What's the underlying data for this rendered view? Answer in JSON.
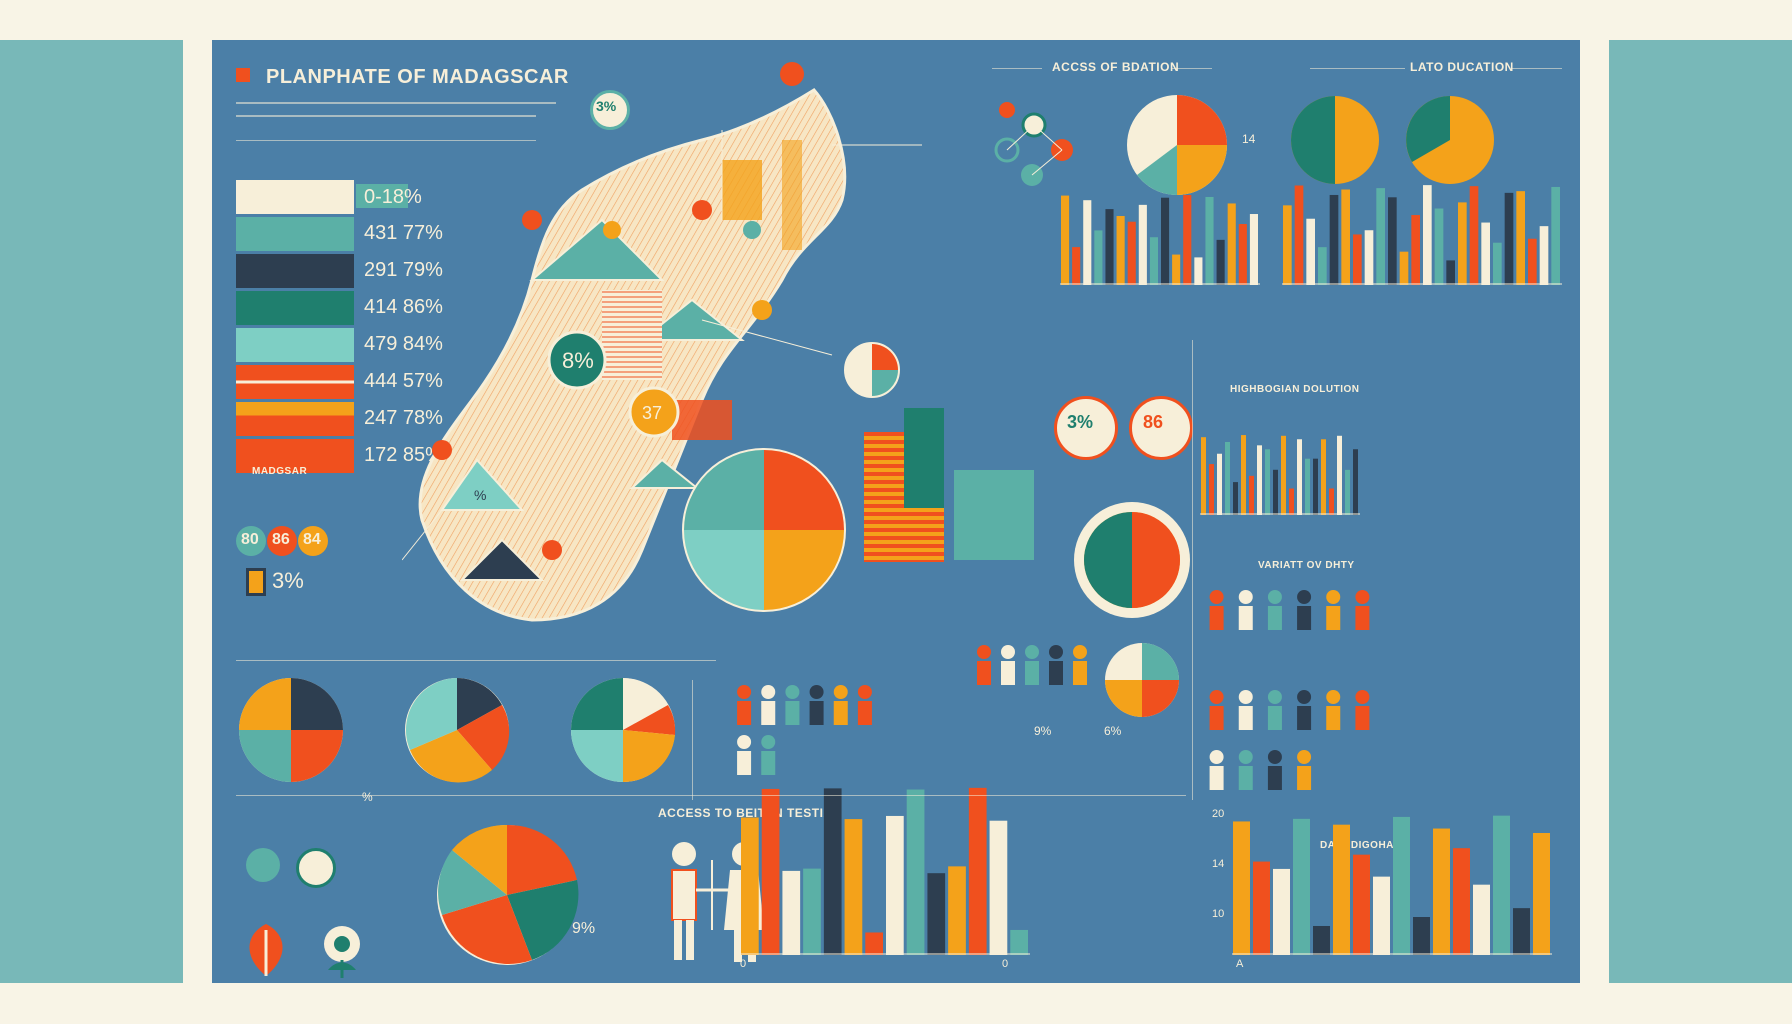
{
  "title": "PLANPHATE OF MADAGSCAR",
  "colors": {
    "panel": "#4b7fa7",
    "cream": "#f7efd9",
    "teal": "#5bb0a6",
    "dark_teal": "#1f7f6e",
    "orange": "#f0501e",
    "yellow": "#f4a21a",
    "navy": "#2d3e50",
    "side": "#78b8b8"
  },
  "icons": [
    "person-icon",
    "leaf-icon",
    "flower-icon",
    "map-icon"
  ],
  "legend": {
    "items": [
      {
        "label": "0-18%",
        "color": "#f7efd9"
      },
      {
        "label": "431 77%",
        "color": "#5bb0a6"
      },
      {
        "label": "291 79%",
        "color": "#2d3e50"
      },
      {
        "label": "414 86%",
        "color": "#1f7f6e"
      },
      {
        "label": "479 84%",
        "color": "#7ecfc4"
      },
      {
        "label": "444 57%",
        "color": "#f0501e"
      },
      {
        "label": "247 78%",
        "color": "#f4a21a"
      },
      {
        "label": "172 85%",
        "color": "#f0501e"
      }
    ],
    "footer": "MADGSAR"
  },
  "headers": {
    "access_education": "ACCSS OF BDATION",
    "late_education": "LATO DUCATION",
    "access_better": "ACCESS TO BEITEN TESTIAN",
    "variety": "VARIATT OV DHTY",
    "highlight": "HIGHBOGIAN DOLUTION",
    "bottom_right": "DABHDIGOHA"
  },
  "stats": {
    "map_8": "8%",
    "map_37": "37",
    "map_percent": "%",
    "top_3": "3%",
    "badges": [
      "80",
      "86",
      "84"
    ],
    "side_3": "3%",
    "circle_3": "3%",
    "circle_86": "86",
    "pie_small": "9%",
    "people_9": "9%",
    "people_6": "6%",
    "bottom_9": "9%",
    "axis_a": "A",
    "axis_0": "0",
    "axis_percent": "%",
    "axis_10": "10",
    "axis_14": "14",
    "axis_20": "20"
  }
}
